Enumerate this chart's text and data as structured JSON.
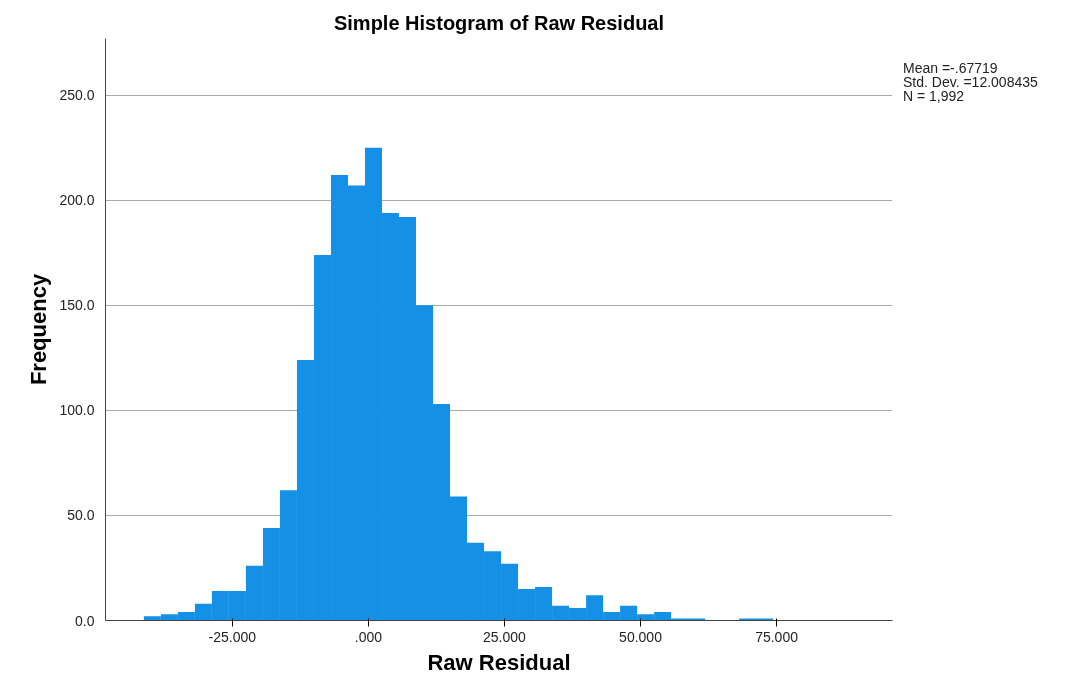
{
  "chart_data": {
    "type": "histogram",
    "title": "Simple Histogram of Raw Residual",
    "xlabel": "Raw Residual",
    "ylabel": "Frequency",
    "bins": [
      -41.25,
      -38.125,
      -35,
      -31.875,
      -28.75,
      -25.625,
      -22.5,
      -19.375,
      -16.25,
      -13.125,
      -10,
      -6.875,
      -3.75,
      -0.625,
      2.5,
      5.625,
      8.75,
      11.875,
      15,
      18.125,
      21.25,
      24.375,
      27.5,
      30.625,
      33.75,
      36.875,
      40,
      43.125,
      46.25,
      49.375,
      52.5,
      55.625,
      58.75,
      61.875,
      65,
      68.125,
      71.25,
      74.375
    ],
    "values": [
      2,
      3,
      4,
      8,
      14,
      14,
      26,
      44,
      62,
      124,
      174,
      212,
      207,
      225,
      194,
      192,
      150,
      103,
      59,
      37,
      33,
      27,
      15,
      16,
      7,
      6,
      12,
      4,
      7,
      3,
      4,
      1,
      1,
      0,
      0,
      1,
      1
    ],
    "color": "#1490e6",
    "xlim": [
      -48.3,
      96.3
    ],
    "ylim": [
      0,
      277
    ],
    "xticks": [
      {
        "value": -25,
        "label": "-25.000"
      },
      {
        "value": 0,
        "label": ".000"
      },
      {
        "value": 25,
        "label": "25.000"
      },
      {
        "value": 50,
        "label": "50.000"
      },
      {
        "value": 75,
        "label": "75.000"
      }
    ],
    "yticks": [
      {
        "value": 0,
        "label": "0.0"
      },
      {
        "value": 50,
        "label": "50.0"
      },
      {
        "value": 100,
        "label": "100.0"
      },
      {
        "value": 150,
        "label": "150.0"
      },
      {
        "value": 200,
        "label": "200.0"
      },
      {
        "value": 250,
        "label": "250.0"
      }
    ],
    "grid": "y",
    "annotations": [
      "Mean =-.67719",
      "Std. Dev. =12.008435",
      "N = 1,992"
    ]
  }
}
